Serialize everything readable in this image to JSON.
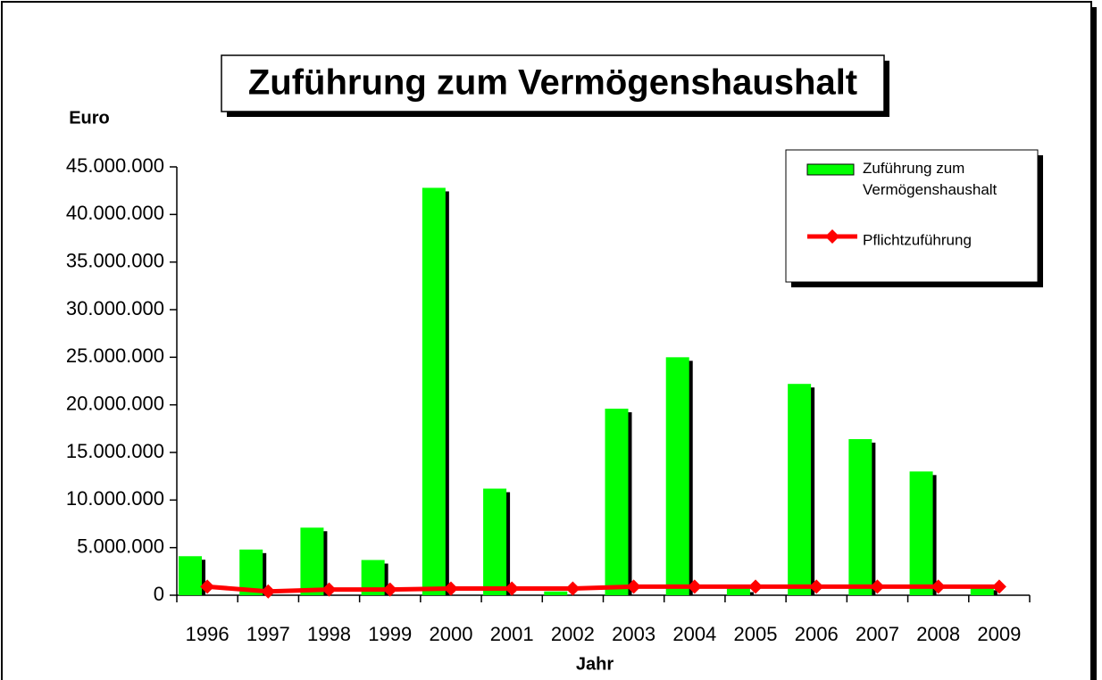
{
  "chart_data": {
    "type": "bar",
    "title": "Zuführung zum Vermögenshaushalt",
    "y_label": "Euro",
    "x_label": "Jahr",
    "categories": [
      "1996",
      "1997",
      "1998",
      "1999",
      "2000",
      "2001",
      "2002",
      "2003",
      "2004",
      "2005",
      "2006",
      "2007",
      "2008",
      "2009"
    ],
    "series": [
      {
        "name": "Zuführung zum Vermögenshaushalt",
        "color": "#00ff00",
        "type": "bar",
        "values": [
          4100000,
          4800000,
          7100000,
          3700000,
          42800000,
          11200000,
          400000,
          19600000,
          25000000,
          700000,
          22200000,
          16400000,
          13000000,
          900000
        ]
      },
      {
        "name": "Pflichtzuführung",
        "color": "#ff0000",
        "type": "line",
        "values": [
          900000,
          400000,
          600000,
          600000,
          700000,
          700000,
          700000,
          900000,
          900000,
          900000,
          900000,
          900000,
          900000,
          900000
        ]
      }
    ],
    "ylim": [
      0,
      45000000
    ],
    "yticks": [
      0,
      {
        "value": 5000000,
        "label": "5.000.000"
      },
      {
        "value": 10000000,
        "label": "10.000.000"
      },
      {
        "value": 15000000,
        "label": "15.000.000"
      },
      {
        "value": 20000000,
        "label": "20.000.000"
      },
      {
        "value": 25000000,
        "label": "25.000.000"
      },
      {
        "value": 30000000,
        "label": "30.000.000"
      },
      {
        "value": 35000000,
        "label": "35.000.000"
      },
      {
        "value": 40000000,
        "label": "40.000.000"
      },
      {
        "value": 45000000,
        "label": "45.000.000"
      }
    ],
    "legend": "top-right"
  }
}
